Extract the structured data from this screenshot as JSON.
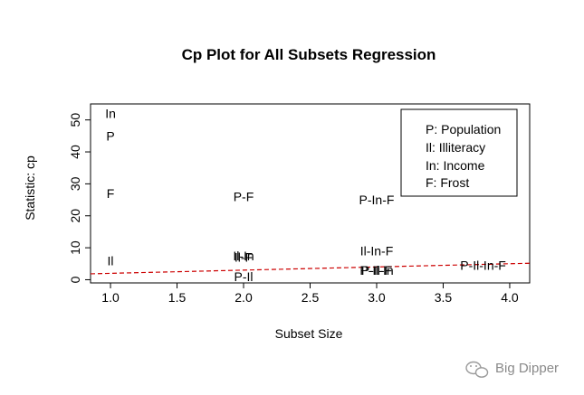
{
  "chart_data": {
    "type": "scatter",
    "title": "Cp Plot for All Subsets Regression",
    "xlabel": "Subset Size",
    "ylabel": "Statistic: cp",
    "xlim": [
      0.85,
      4.15
    ],
    "ylim": [
      -1,
      55
    ],
    "xticks": [
      "1.0",
      "1.5",
      "2.0",
      "2.5",
      "3.0",
      "3.5",
      "4.0"
    ],
    "yticks": [
      "0",
      "10",
      "20",
      "30",
      "40",
      "50"
    ],
    "points": [
      {
        "label": "In",
        "x": 1.0,
        "y": 52
      },
      {
        "label": "P",
        "x": 1.0,
        "y": 45
      },
      {
        "label": "F",
        "x": 1.0,
        "y": 27
      },
      {
        "label": "Il",
        "x": 1.0,
        "y": 6
      },
      {
        "label": "P-F",
        "x": 2.0,
        "y": 26
      },
      {
        "label": "Il-In",
        "x": 2.0,
        "y": 7.5
      },
      {
        "label": "Il-F",
        "x": 2.0,
        "y": 7
      },
      {
        "label": "P-Il",
        "x": 2.0,
        "y": 1
      },
      {
        "label": "P-In-F",
        "x": 3.0,
        "y": 25
      },
      {
        "label": "Il-In-F",
        "x": 3.0,
        "y": 9
      },
      {
        "label": "P-Il-In",
        "x": 3.0,
        "y": 3
      },
      {
        "label": "P-Il-F",
        "x": 3.0,
        "y": 3
      },
      {
        "label": "P-Il-In-F",
        "x": 3.8,
        "y": 4.5
      }
    ],
    "reference_line": {
      "x": [
        0.85,
        4.15
      ],
      "y": [
        1.85,
        5.15
      ],
      "color": "#cc0000",
      "style": "dashed"
    },
    "legend": {
      "position": "top-right",
      "entries": [
        "P: Population",
        "Il: Illiteracy",
        "In: Income",
        "F: Frost"
      ]
    },
    "grid": false
  },
  "watermark": {
    "text": "Big Dipper",
    "icon": "wechat-icon"
  }
}
